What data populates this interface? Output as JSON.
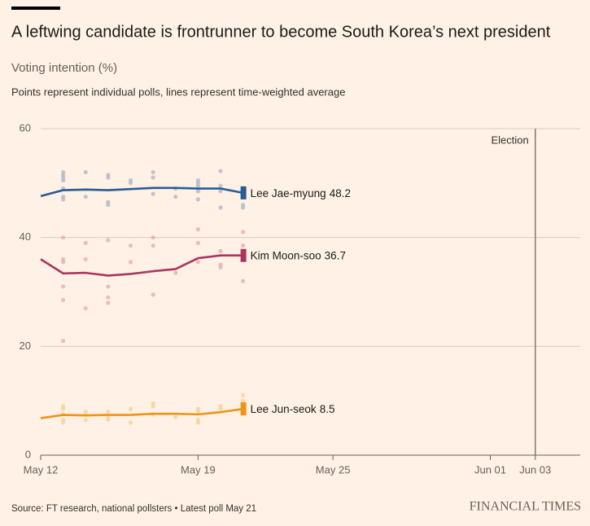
{
  "chart_data": {
    "type": "line",
    "title": "A leftwing candidate is frontrunner to become South Korea’s next president",
    "subtitle": "Voting intention (%)",
    "note": "Points represent individual polls, lines represent time-weighted average",
    "source": "Source: FT research, national pollsters • Latest poll May 21",
    "brand": "FINANCIAL TIMES",
    "x": [
      "May 12",
      "May 13",
      "May 14",
      "May 15",
      "May 16",
      "May 17",
      "May 18",
      "May 19",
      "May 20",
      "May 21"
    ],
    "xlim": [
      "May 12",
      "Jun 05"
    ],
    "xticks": [
      "May 12",
      "May 19",
      "May 25",
      "Jun 01",
      "Jun 03"
    ],
    "ylim": [
      0,
      60
    ],
    "yticks": [
      0,
      20,
      40,
      60
    ],
    "grid": true,
    "annotations": [
      {
        "x": "Jun 03",
        "label": "Election"
      }
    ],
    "series": [
      {
        "name": "Lee Jae-myung",
        "color": "#2a5b92",
        "point_color": "#a9b6c8",
        "values": [
          47.6,
          48.7,
          48.8,
          48.7,
          48.9,
          49.1,
          49.1,
          49.0,
          49.0,
          48.2
        ],
        "polls": {
          "x": [
            "May 13",
            "May 13",
            "May 13",
            "May 13",
            "May 13",
            "May 13",
            "May 13",
            "May 14",
            "May 14",
            "May 15",
            "May 15",
            "May 15",
            "May 15",
            "May 16",
            "May 16",
            "May 17",
            "May 17",
            "May 17",
            "May 18",
            "May 18",
            "May 19",
            "May 19",
            "May 19",
            "May 19",
            "May 19",
            "May 20",
            "May 20",
            "May 20",
            "May 20",
            "May 21",
            "May 21",
            "May 21"
          ],
          "values": [
            52,
            51.5,
            51,
            50.5,
            49,
            47.5,
            47,
            52,
            47.5,
            51.5,
            51,
            46.5,
            46,
            50.5,
            50,
            52,
            51,
            48,
            49,
            47.5,
            50.5,
            50,
            49.5,
            48.5,
            47,
            52.2,
            49.5,
            48.5,
            45.5,
            46,
            45.5,
            48.5
          ]
        }
      },
      {
        "name": "Kim Moon-soo",
        "color": "#a8365f",
        "point_color": "#e3a9b0",
        "values": [
          36.0,
          33.4,
          33.5,
          33.0,
          33.3,
          33.8,
          34.2,
          36.2,
          36.7,
          36.7
        ],
        "polls": {
          "x": [
            "May 13",
            "May 13",
            "May 13",
            "May 13",
            "May 13",
            "May 13",
            "May 14",
            "May 14",
            "May 14",
            "May 15",
            "May 15",
            "May 15",
            "May 15",
            "May 16",
            "May 16",
            "May 17",
            "May 17",
            "May 17",
            "May 18",
            "May 19",
            "May 19",
            "May 19",
            "May 20",
            "May 20",
            "May 20",
            "May 21",
            "May 21",
            "May 21"
          ],
          "values": [
            40,
            36,
            35.5,
            31,
            28.5,
            21,
            39,
            36,
            27,
            39.5,
            31,
            29,
            28,
            38.5,
            35.5,
            40,
            38.5,
            29.5,
            33.5,
            41.5,
            39,
            35.5,
            37.5,
            35,
            34.5,
            41,
            38.5,
            32
          ]
        }
      },
      {
        "name": "Lee Jun-seok",
        "color": "#ee9416",
        "point_color": "#f6cf8e",
        "values": [
          6.8,
          7.4,
          7.3,
          7.4,
          7.4,
          7.6,
          7.6,
          7.5,
          7.9,
          8.5
        ],
        "polls": {
          "x": [
            "May 13",
            "May 13",
            "May 13",
            "May 13",
            "May 13",
            "May 14",
            "May 14",
            "May 14",
            "May 15",
            "May 15",
            "May 15",
            "May 16",
            "May 16",
            "May 17",
            "May 17",
            "May 17",
            "May 18",
            "May 19",
            "May 19",
            "May 19",
            "May 19",
            "May 20",
            "May 20",
            "May 21",
            "May 21",
            "May 21"
          ],
          "values": [
            9,
            8.5,
            7.5,
            6.5,
            6,
            8,
            7.5,
            6.5,
            8,
            7,
            6.5,
            8.5,
            6,
            9.5,
            9,
            7.5,
            7,
            8.5,
            8,
            6.5,
            6,
            9,
            8.5,
            11,
            10,
            9.5
          ]
        }
      }
    ]
  }
}
